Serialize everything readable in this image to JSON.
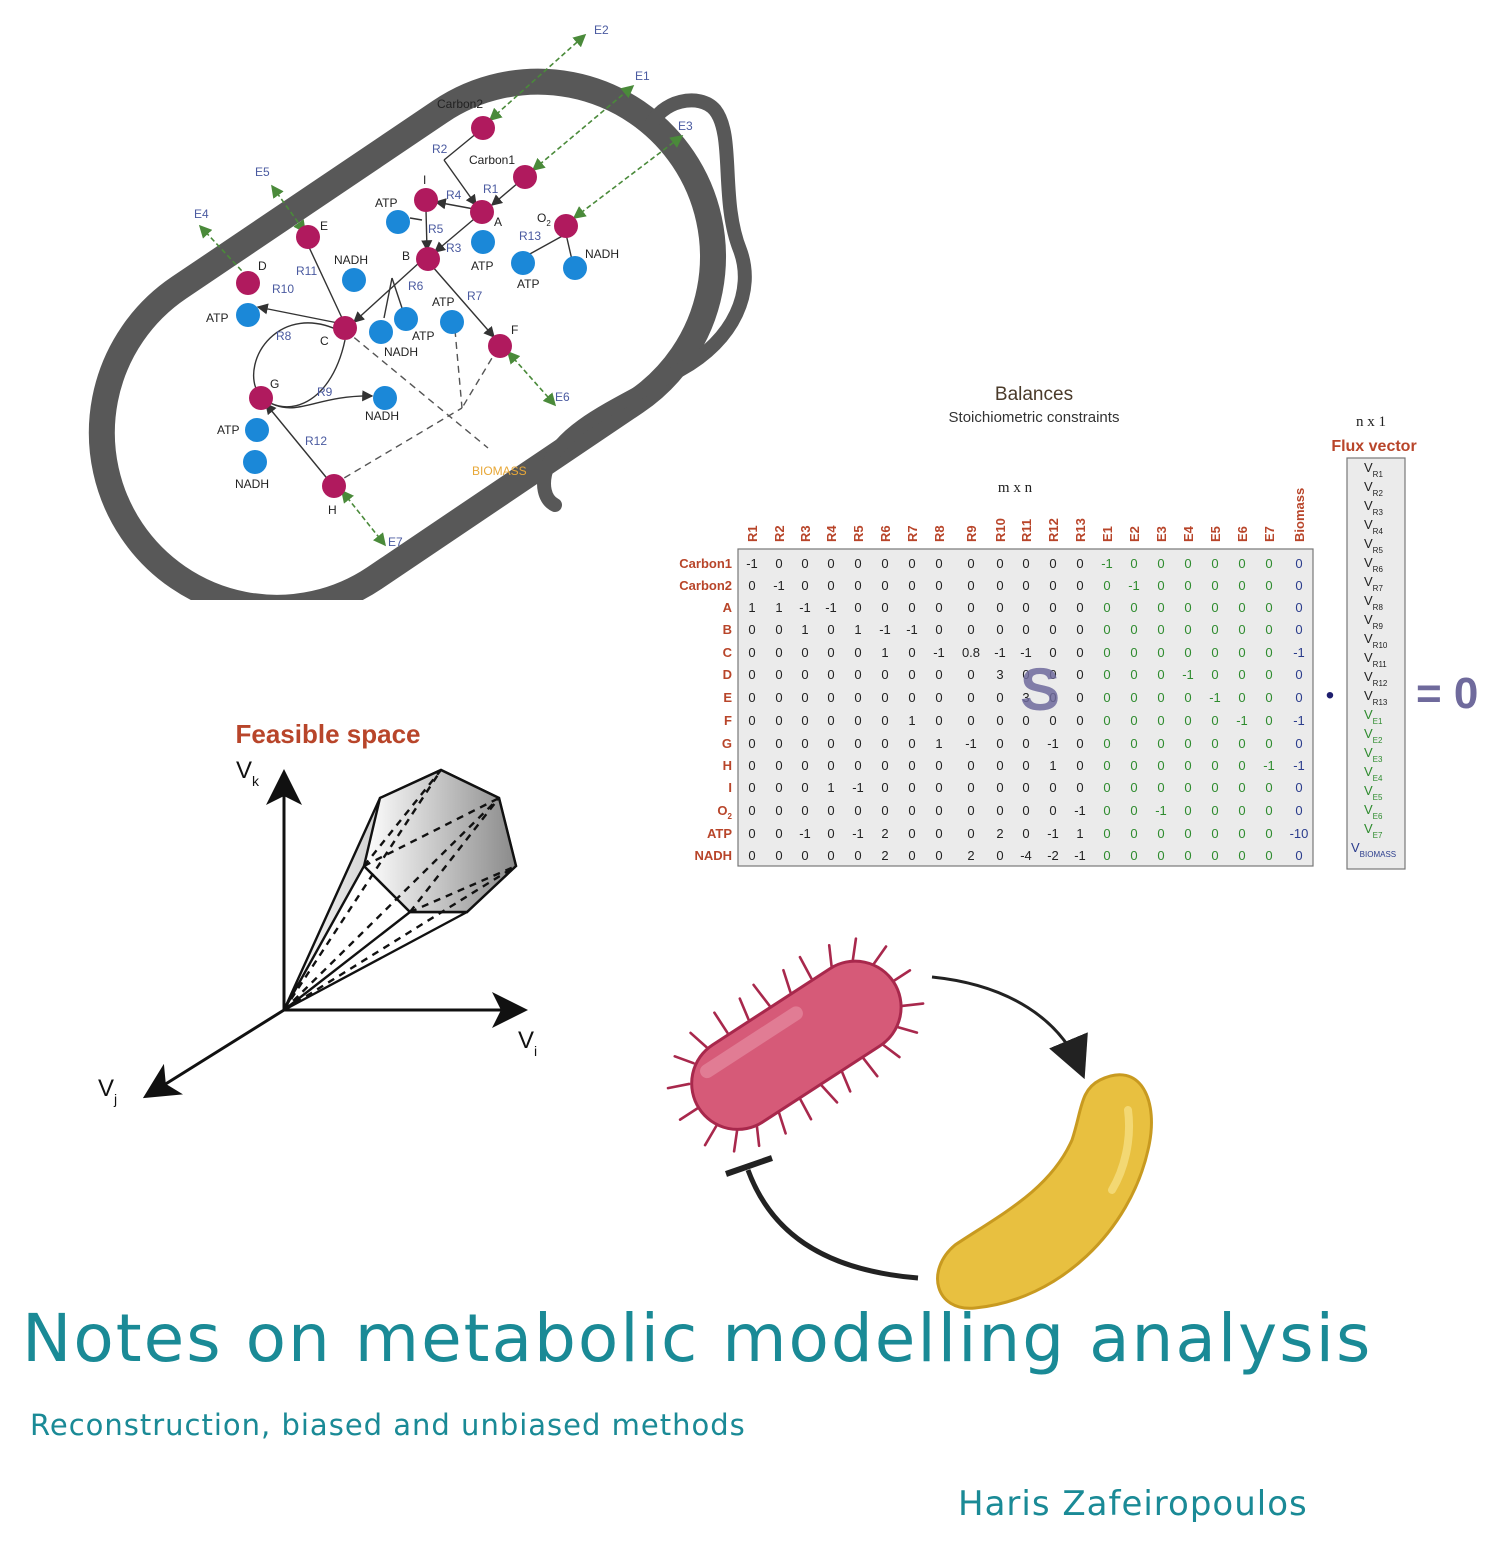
{
  "cell_diagram": {
    "metabolites": {
      "carbon2": "Carbon2",
      "carbon1": "Carbon1",
      "i": "I",
      "a": "A",
      "o2": "O",
      "o2_sub": "2",
      "b": "B",
      "e": "E",
      "d": "D",
      "c": "C",
      "f": "F",
      "g": "G",
      "h": "H"
    },
    "cofactors": {
      "atp_top": "ATP",
      "atp_a": "ATP",
      "nadh_o2": "NADH",
      "atp_o2": "ATP",
      "nadh_e": "NADH",
      "atp_d": "ATP",
      "nadh_c": "NADH",
      "atp_c": "ATP",
      "atp_r7": "ATP",
      "nadh_r9": "NADH",
      "atp_g": "ATP",
      "nadh_g": "NADH"
    },
    "reactions": [
      "R1",
      "R2",
      "R3",
      "R4",
      "R5",
      "R6",
      "R7",
      "R8",
      "R9",
      "R10",
      "R11",
      "R12",
      "R13"
    ],
    "exchanges": [
      "E1",
      "E2",
      "E3",
      "E4",
      "E5",
      "E6",
      "E7"
    ],
    "biomass": "BIOMASS"
  },
  "balances": {
    "title": "Balances",
    "subtitle": "Stoichiometric constraints",
    "dims": "m x n",
    "columns": [
      "R1",
      "R2",
      "R3",
      "R4",
      "R5",
      "R6",
      "R7",
      "R8",
      "R9",
      "R10",
      "R11",
      "R12",
      "R13",
      "E1",
      "E2",
      "E3",
      "E4",
      "E5",
      "E6",
      "E7",
      "Biomass"
    ],
    "rows": [
      "Carbon1",
      "Carbon2",
      "A",
      "B",
      "C",
      "D",
      "E",
      "F",
      "G",
      "H",
      "I",
      "O",
      "ATP",
      "NADH"
    ],
    "o2_sub": "2",
    "values": [
      [
        "-1",
        "0",
        "0",
        "0",
        "0",
        "0",
        "0",
        "0",
        "0",
        "0",
        "0",
        "0",
        "0",
        "-1",
        "0",
        "0",
        "0",
        "0",
        "0",
        "0",
        "0"
      ],
      [
        "0",
        "-1",
        "0",
        "0",
        "0",
        "0",
        "0",
        "0",
        "0",
        "0",
        "0",
        "0",
        "0",
        "0",
        "-1",
        "0",
        "0",
        "0",
        "0",
        "0",
        "0"
      ],
      [
        "1",
        "1",
        "-1",
        "-1",
        "0",
        "0",
        "0",
        "0",
        "0",
        "0",
        "0",
        "0",
        "0",
        "0",
        "0",
        "0",
        "0",
        "0",
        "0",
        "0",
        "0"
      ],
      [
        "0",
        "0",
        "1",
        "0",
        "1",
        "-1",
        "-1",
        "0",
        "0",
        "0",
        "0",
        "0",
        "0",
        "0",
        "0",
        "0",
        "0",
        "0",
        "0",
        "0",
        "0"
      ],
      [
        "0",
        "0",
        "0",
        "0",
        "0",
        "1",
        "0",
        "-1",
        "0.8",
        "-1",
        "-1",
        "0",
        "0",
        "0",
        "0",
        "0",
        "0",
        "0",
        "0",
        "0",
        "-1"
      ],
      [
        "0",
        "0",
        "0",
        "0",
        "0",
        "0",
        "0",
        "0",
        "0",
        "3",
        "0",
        "0",
        "0",
        "0",
        "0",
        "0",
        "-1",
        "0",
        "0",
        "0",
        "0"
      ],
      [
        "0",
        "0",
        "0",
        "0",
        "0",
        "0",
        "0",
        "0",
        "0",
        "0",
        "3",
        "0",
        "0",
        "0",
        "0",
        "0",
        "0",
        "-1",
        "0",
        "0",
        "0"
      ],
      [
        "0",
        "0",
        "0",
        "0",
        "0",
        "0",
        "1",
        "0",
        "0",
        "0",
        "0",
        "0",
        "0",
        "0",
        "0",
        "0",
        "0",
        "0",
        "-1",
        "0",
        "-1"
      ],
      [
        "0",
        "0",
        "0",
        "0",
        "0",
        "0",
        "0",
        "1",
        "-1",
        "0",
        "0",
        "-1",
        "0",
        "0",
        "0",
        "0",
        "0",
        "0",
        "0",
        "0",
        "0"
      ],
      [
        "0",
        "0",
        "0",
        "0",
        "0",
        "0",
        "0",
        "0",
        "0",
        "0",
        "0",
        "1",
        "0",
        "0",
        "0",
        "0",
        "0",
        "0",
        "0",
        "-1",
        "-1"
      ],
      [
        "0",
        "0",
        "0",
        "1",
        "-1",
        "0",
        "0",
        "0",
        "0",
        "0",
        "0",
        "0",
        "0",
        "0",
        "0",
        "0",
        "0",
        "0",
        "0",
        "0",
        "0"
      ],
      [
        "0",
        "0",
        "0",
        "0",
        "0",
        "0",
        "0",
        "0",
        "0",
        "0",
        "0",
        "0",
        "-1",
        "0",
        "0",
        "-1",
        "0",
        "0",
        "0",
        "0",
        "0"
      ],
      [
        "0",
        "0",
        "-1",
        "0",
        "-1",
        "2",
        "0",
        "0",
        "0",
        "2",
        "0",
        "-1",
        "1",
        "0",
        "0",
        "0",
        "0",
        "0",
        "0",
        "0",
        "-10"
      ],
      [
        "0",
        "0",
        "0",
        "0",
        "0",
        "2",
        "0",
        "0",
        "2",
        "0",
        "-4",
        "-2",
        "-1",
        "0",
        "0",
        "0",
        "0",
        "0",
        "0",
        "0",
        "0"
      ]
    ],
    "matrix_symbol": "S",
    "dot": "•",
    "flux_symbol": "V",
    "equals": "= 0"
  },
  "flux_vector": {
    "dims": "n x 1",
    "title": "Flux vector",
    "entries": [
      {
        "v": "V",
        "sub": "R1"
      },
      {
        "v": "V",
        "sub": "R2"
      },
      {
        "v": "V",
        "sub": "R3"
      },
      {
        "v": "V",
        "sub": "R4"
      },
      {
        "v": "V",
        "sub": "R5"
      },
      {
        "v": "V",
        "sub": "R6"
      },
      {
        "v": "V",
        "sub": "R7"
      },
      {
        "v": "V",
        "sub": "R8"
      },
      {
        "v": "V",
        "sub": "R9"
      },
      {
        "v": "V",
        "sub": "R10"
      },
      {
        "v": "V",
        "sub": "R11"
      },
      {
        "v": "V",
        "sub": "R12"
      },
      {
        "v": "V",
        "sub": "R13"
      },
      {
        "v": "V",
        "sub": "E1"
      },
      {
        "v": "V",
        "sub": "E2"
      },
      {
        "v": "V",
        "sub": "E3"
      },
      {
        "v": "V",
        "sub": "E4"
      },
      {
        "v": "V",
        "sub": "E5"
      },
      {
        "v": "V",
        "sub": "E6"
      },
      {
        "v": "V",
        "sub": "E7"
      },
      {
        "v": "V",
        "sub": "BIOMASS"
      }
    ]
  },
  "feasible_space": {
    "title": "Feasible space",
    "axis_k": "V",
    "axis_k_sub": "k",
    "axis_i": "V",
    "axis_i_sub": "i",
    "axis_j": "V",
    "axis_j_sub": "j"
  },
  "colors": {
    "teal": "#1a8a96",
    "metabolite": "#b01a5e",
    "cofactor": "#1b88d8",
    "row_label": "#b8452a",
    "exchange_value": "#2e8b2e",
    "biomass_value": "#2a3c8c",
    "symbol": "#6f6a9c",
    "cell_wall": "#585858"
  },
  "footer": {
    "title": "Notes on metabolic modelling analysis",
    "subtitle": "Reconstruction, biased and unbiased methods",
    "author": "Haris Zafeiropoulos"
  }
}
